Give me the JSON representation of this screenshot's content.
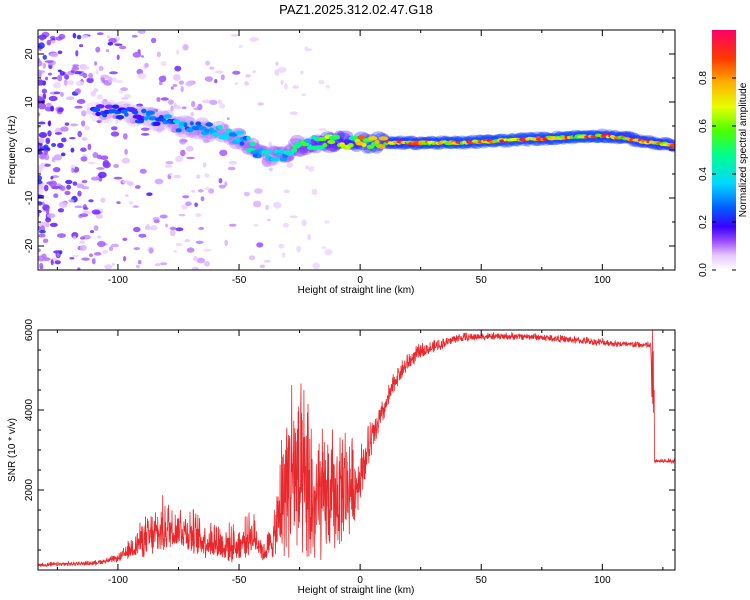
{
  "title": "PAZ1.2025.312.02.47.G18",
  "charts": [
    {
      "type": "heatmap",
      "xlabel": "Height of straight line (km)",
      "ylabel": "Frequency (Hz)",
      "xlim": [
        -133,
        130
      ],
      "ylim": [
        -25,
        25
      ],
      "xticks": [
        -100,
        -50,
        0,
        50,
        100
      ],
      "yticks": [
        -20,
        -10,
        0,
        10,
        20
      ],
      "xtick_labels": [
        "-100",
        "-50",
        "0",
        "50",
        "100"
      ],
      "ytick_labels": [
        "-20",
        "-10",
        "0",
        "10",
        "20"
      ],
      "colorbar": {
        "label": "Normalized spectral amplitude",
        "range": [
          0,
          1
        ],
        "ticks": [
          0,
          0.2,
          0.4,
          0.6,
          0.8
        ],
        "tick_labels": [
          "0.0",
          "0.2",
          "0.4",
          "0.6",
          "0.8"
        ]
      },
      "ridge": {
        "x": [
          -100,
          -90,
          -80,
          -70,
          -60,
          -50,
          -45,
          -40,
          -35,
          -30,
          -25,
          -20,
          -10,
          0,
          10,
          20,
          40,
          60,
          80,
          100,
          110,
          120,
          130
        ],
        "freq": [
          8,
          7,
          6,
          4.5,
          4,
          2.5,
          1,
          -1,
          -1.5,
          -0.5,
          1,
          1.5,
          2,
          1.5,
          1.5,
          1.5,
          1.5,
          2,
          2.5,
          3,
          2.5,
          1.5,
          1
        ],
        "amplitude": [
          0.25,
          0.3,
          0.35,
          0.4,
          0.4,
          0.45,
          0.45,
          0.45,
          0.45,
          0.5,
          0.55,
          0.6,
          0.7,
          0.85,
          0.9,
          0.9,
          0.95,
          0.95,
          0.95,
          0.95,
          0.9,
          0.9,
          0.85
        ]
      }
    },
    {
      "type": "line",
      "xlabel": "Height of straight line (km)",
      "ylabel": "SNR (10 * v/v)",
      "xlim": [
        -133,
        130
      ],
      "ylim": [
        0,
        6000
      ],
      "xticks": [
        -100,
        -50,
        0,
        50,
        100
      ],
      "yticks": [
        2000,
        4000,
        6000
      ],
      "xtick_labels": [
        "-100",
        "-50",
        "0",
        "50",
        "100"
      ],
      "ytick_labels": [
        "2000",
        "4000",
        "6000"
      ],
      "series_color": "#e8282c",
      "envelope": {
        "x": [
          -133,
          -110,
          -100,
          -95,
          -90,
          -85,
          -80,
          -75,
          -70,
          -65,
          -60,
          -55,
          -50,
          -45,
          -42,
          -40,
          -35,
          -32,
          -30,
          -28,
          -25,
          -22,
          -20,
          -15,
          -10,
          -5,
          -2,
          0,
          5,
          10,
          15,
          20,
          25,
          30,
          40,
          50,
          60,
          70,
          80,
          90,
          100,
          110,
          120,
          121,
          125,
          130
        ],
        "base": [
          100,
          150,
          250,
          400,
          550,
          600,
          750,
          850,
          650,
          550,
          500,
          400,
          450,
          650,
          550,
          300,
          600,
          1100,
          1400,
          1500,
          1100,
          900,
          800,
          1100,
          1200,
          1500,
          1700,
          2100,
          3100,
          3900,
          4700,
          5100,
          5400,
          5500,
          5750,
          5800,
          5800,
          5800,
          5750,
          5700,
          5650,
          5600,
          5580,
          2700,
          2700,
          2700
        ],
        "spread": [
          90,
          90,
          150,
          400,
          800,
          1000,
          1200,
          900,
          1000,
          800,
          900,
          800,
          700,
          900,
          700,
          400,
          1000,
          2800,
          3500,
          4200,
          3600,
          3800,
          3400,
          2600,
          2500,
          2400,
          1400,
          1200,
          800,
          500,
          450,
          400,
          300,
          250,
          200,
          150,
          150,
          150,
          150,
          150,
          150,
          150,
          150,
          100,
          100,
          100
        ]
      }
    }
  ],
  "colors": {
    "snr_line": "#e8282c",
    "frame": "#000000"
  }
}
